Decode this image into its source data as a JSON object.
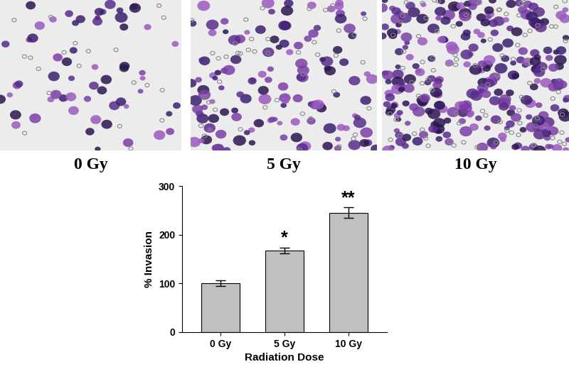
{
  "panels": [
    "0 Gy",
    "5 Gy",
    "10 Gy"
  ],
  "chart_data": {
    "type": "bar",
    "categories": [
      "0 Gy",
      "5 Gy",
      "10 Gy"
    ],
    "values": [
      100,
      168,
      245
    ],
    "errors": [
      6,
      6,
      11
    ],
    "color": "#c0c0c0",
    "x_label": "Radiation Dose",
    "y_label": "% Invasion",
    "ylim": [
      0,
      300
    ],
    "yticks": [
      0,
      100,
      200,
      300
    ],
    "grid": false,
    "annotations": [
      {
        "category": "5 Gy",
        "text": "*"
      },
      {
        "category": "10 Gy",
        "text": "**"
      }
    ]
  }
}
